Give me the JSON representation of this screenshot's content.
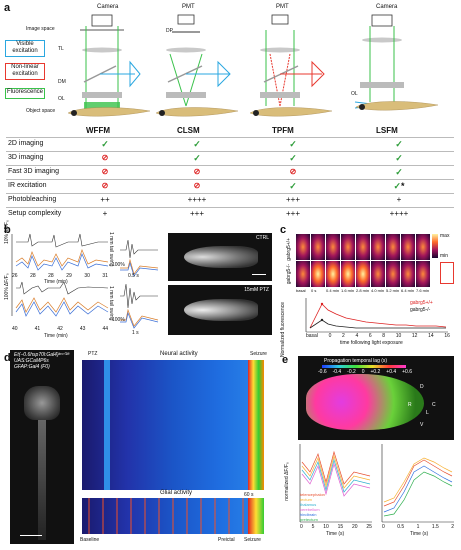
{
  "panels": {
    "a": {
      "label": "a",
      "methods": [
        "WFFM",
        "CLSM",
        "TPFM",
        "LSFM"
      ],
      "detectors": [
        "Camera",
        "PMT",
        "PMT",
        "Camera"
      ],
      "optics_labels": {
        "image_space": "Image space",
        "tl": "TL",
        "dp": "DP",
        "dm": "DM",
        "ol": "OL",
        "ol2": "OL",
        "object_space": "Object space"
      },
      "legend": [
        {
          "text": "Visible excitation",
          "color": "#2aa7e0"
        },
        {
          "text": "Non-linear excitation",
          "color": "#e8392f"
        },
        {
          "text": "Fluorescence",
          "color": "#39c24a"
        }
      ],
      "table": {
        "rows": [
          {
            "label": "2D imaging",
            "cells": [
              "check",
              "check",
              "check",
              "check"
            ]
          },
          {
            "label": "3D imaging",
            "cells": [
              "no",
              "check",
              "check",
              "check"
            ]
          },
          {
            "label": "Fast 3D imaging",
            "cells": [
              "no",
              "no",
              "no",
              "check"
            ]
          },
          {
            "label": "IR excitation",
            "cells": [
              "no",
              "no",
              "check",
              "check*"
            ]
          },
          {
            "label": "Photobleaching",
            "cells": [
              "++",
              "++++",
              "+++",
              "+"
            ]
          },
          {
            "label": "Setup complexity",
            "cells": [
              "+",
              "+++",
              "+++",
              "++++"
            ]
          }
        ]
      }
    },
    "b": {
      "label": "b",
      "ylabel_top": "10% ΔF/F₀",
      "ylabel_bottom": "100% ΔF/F₀",
      "xaxis_top": [
        "26",
        "28",
        "28",
        "29",
        "30",
        "31"
      ],
      "xaxis_bottom": [
        "40",
        "41",
        "42",
        "43",
        "44"
      ],
      "xtitle": "Time (min)",
      "scale_top": "1 mm tail swing",
      "scale_bottom": "1 mm tail swing",
      "inset_time_top": "0.5 s",
      "inset_time_bottom": "1 s",
      "inset_label_top": "100%",
      "inset_label_bottom": "100%",
      "image_top_label": "CTRL",
      "image_bottom_label": "15mM PTZ"
    },
    "c": {
      "label": "c",
      "genotypes": [
        "gabrg5+/+",
        "gabrg5-/-"
      ],
      "time_labels": [
        "basal",
        "0 s",
        "0.4 min",
        "1.6 min",
        "2.8 min",
        "4.0 min",
        "5.2 min",
        "6.4 min",
        "7.6 min"
      ],
      "graph_ylabel": "Normalized fluorescence",
      "graph_xlabel": "time following light exposure",
      "legend": [
        "gabrg5+/+",
        "gabrg5-/-"
      ],
      "colorbar_min": "min",
      "colorbar_max": "max",
      "x_ticks": [
        "basal",
        "0",
        "2",
        "4",
        "6",
        "8",
        "10",
        "12",
        "14",
        "16"
      ]
    },
    "d": {
      "label": "d",
      "transgene_lines": [
        "Et(−0.6hsp70l:Gal4)ᵏᶜᶜ⁰²⁸",
        "UAS:GCaMP6s",
        "GFAP:Gal4 (F0)"
      ],
      "ptz_label": "PTZ",
      "neural_title": "Neural activity",
      "glial_title": "Glial activity",
      "seizure_label": "Seizure",
      "baseline_label": "Baseline",
      "preictal_label": "Preictal",
      "seizure_bottom": "Seizure",
      "time_scale": "60 s"
    },
    "e": {
      "label": "e",
      "colorbar_title": "Propagation temporal lag (s)",
      "colorbar_ticks": [
        "-0.6",
        "-0.4",
        "-0.2",
        "0",
        "+0.2",
        "+0.4",
        "+0.6"
      ],
      "axes": {
        "d": "D",
        "v": "V",
        "r": "R",
        "l": "L",
        "c": "C"
      },
      "left_ylabel": "normalized ΔF/F₀",
      "left_xlabel": "Time (s)",
      "right_xlabel": "Time (s)",
      "left_xticks": [
        "0",
        "5",
        "10",
        "15",
        "20",
        "25"
      ],
      "right_xticks": [
        "0",
        "0.5",
        "1",
        "1.5",
        "2"
      ],
      "left_yticks": [
        "0.8",
        "0.6",
        "0.4",
        "0.2",
        "0"
      ],
      "legend": [
        "telencephalon",
        "tectum",
        "thalamus",
        "cerebellum",
        "hindbrain",
        "pretectum"
      ]
    }
  }
}
